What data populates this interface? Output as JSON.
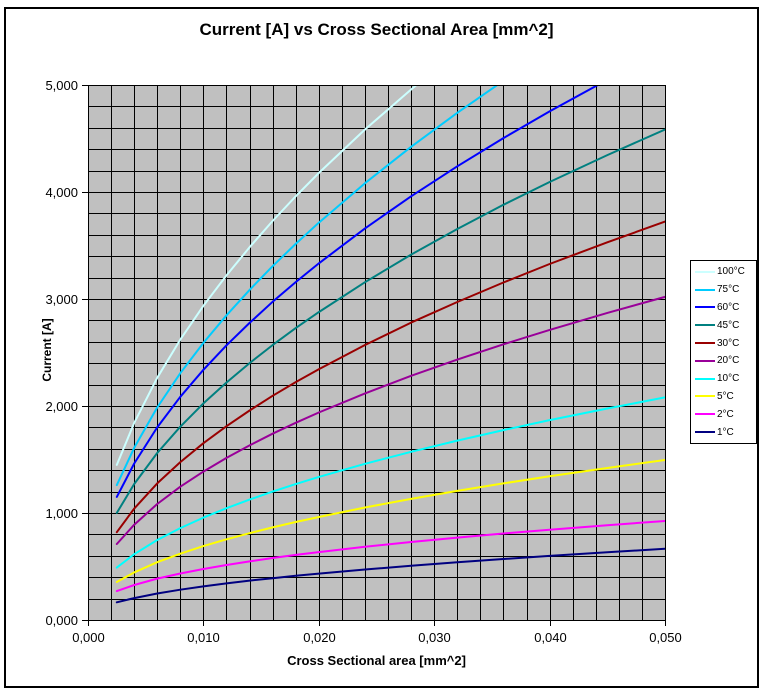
{
  "chart_data": {
    "type": "line",
    "title": "Current [A] vs Cross Sectional Area [mm^2]",
    "xlabel": "Cross Sectional area [mm^2]",
    "ylabel": "Current [A]",
    "xlim": [
      0,
      0.05
    ],
    "ylim": [
      0,
      5000
    ],
    "grid": true,
    "plot_bg_color": "#C0C0C0",
    "grid_color": "#000000",
    "axis_color": "#000000",
    "x_minor_step": 0.002,
    "y_minor_step": 200,
    "legend_position": "right",
    "x_ticks": {
      "values": [
        0,
        0.01,
        0.02,
        0.03,
        0.04,
        0.05
      ],
      "labels": [
        "0,000",
        "0,010",
        "0,020",
        "0,030",
        "0,040",
        "0,050"
      ]
    },
    "y_ticks": {
      "values": [
        0,
        1000,
        2000,
        3000,
        4000,
        5000
      ],
      "labels": [
        "0,000",
        "1,000",
        "2,000",
        "3,000",
        "4,000",
        "5,000"
      ]
    },
    "series": [
      {
        "name": "100°C",
        "color": "#CCFFFF",
        "points": [
          [
            0.0025,
            1450
          ],
          [
            0.004,
            1842
          ],
          [
            0.006,
            2264
          ],
          [
            0.008,
            2621
          ],
          [
            0.01,
            2936
          ],
          [
            0.012,
            3221
          ],
          [
            0.014,
            3484
          ],
          [
            0.016,
            3729
          ],
          [
            0.018,
            3960
          ],
          [
            0.02,
            4178
          ],
          [
            0.024,
            4584
          ],
          [
            0.028,
            4958
          ],
          [
            0.03,
            5137
          ]
        ]
      },
      {
        "name": "75°C",
        "color": "#00CCFF",
        "points": [
          [
            0.0025,
            1261
          ],
          [
            0.004,
            1609
          ],
          [
            0.006,
            1986
          ],
          [
            0.008,
            2307
          ],
          [
            0.01,
            2590
          ],
          [
            0.012,
            2848
          ],
          [
            0.014,
            3085
          ],
          [
            0.016,
            3307
          ],
          [
            0.018,
            3515
          ],
          [
            0.02,
            3713
          ],
          [
            0.024,
            4082
          ],
          [
            0.028,
            4422
          ],
          [
            0.032,
            4740
          ],
          [
            0.036,
            5039
          ]
        ]
      },
      {
        "name": "60°C",
        "color": "#0000FF",
        "points": [
          [
            0.0025,
            1150
          ],
          [
            0.004,
            1463
          ],
          [
            0.006,
            1800
          ],
          [
            0.008,
            2086
          ],
          [
            0.01,
            2338
          ],
          [
            0.012,
            2567
          ],
          [
            0.014,
            2777
          ],
          [
            0.016,
            2974
          ],
          [
            0.018,
            3158
          ],
          [
            0.02,
            3333
          ],
          [
            0.024,
            3660
          ],
          [
            0.028,
            3960
          ],
          [
            0.032,
            4240
          ],
          [
            0.036,
            4504
          ],
          [
            0.04,
            4753
          ],
          [
            0.045,
            5049
          ]
        ]
      },
      {
        "name": "45°C",
        "color": "#008080",
        "points": [
          [
            0.0025,
            1001
          ],
          [
            0.004,
            1271
          ],
          [
            0.006,
            1561
          ],
          [
            0.008,
            1807
          ],
          [
            0.01,
            2024
          ],
          [
            0.012,
            2220
          ],
          [
            0.014,
            2401
          ],
          [
            0.016,
            2569
          ],
          [
            0.018,
            2728
          ],
          [
            0.02,
            2878
          ],
          [
            0.024,
            3157
          ],
          [
            0.028,
            3415
          ],
          [
            0.032,
            3654
          ],
          [
            0.036,
            3880
          ],
          [
            0.04,
            4093
          ],
          [
            0.045,
            4345
          ],
          [
            0.05,
            4584
          ]
        ]
      },
      {
        "name": "30°C",
        "color": "#990000",
        "points": [
          [
            0.0025,
            821
          ],
          [
            0.004,
            1041
          ],
          [
            0.006,
            1277
          ],
          [
            0.008,
            1476
          ],
          [
            0.01,
            1652
          ],
          [
            0.012,
            1811
          ],
          [
            0.014,
            1958
          ],
          [
            0.016,
            2095
          ],
          [
            0.018,
            2223
          ],
          [
            0.02,
            2344
          ],
          [
            0.024,
            2570
          ],
          [
            0.028,
            2779
          ],
          [
            0.032,
            2972
          ],
          [
            0.036,
            3154
          ],
          [
            0.04,
            3327
          ],
          [
            0.045,
            3530
          ],
          [
            0.05,
            3723
          ]
        ]
      },
      {
        "name": "20°C",
        "color": "#990099",
        "points": [
          [
            0.0025,
            710
          ],
          [
            0.004,
            891
          ],
          [
            0.006,
            1084
          ],
          [
            0.008,
            1246
          ],
          [
            0.01,
            1387
          ],
          [
            0.012,
            1515
          ],
          [
            0.014,
            1632
          ],
          [
            0.016,
            1741
          ],
          [
            0.018,
            1843
          ],
          [
            0.02,
            1939
          ],
          [
            0.024,
            2118
          ],
          [
            0.028,
            2282
          ],
          [
            0.032,
            2434
          ],
          [
            0.036,
            2577
          ],
          [
            0.04,
            2711
          ],
          [
            0.045,
            2870
          ],
          [
            0.05,
            3020
          ]
        ]
      },
      {
        "name": "10°C",
        "color": "#00FFFF",
        "points": [
          [
            0.0025,
            490
          ],
          [
            0.004,
            615
          ],
          [
            0.006,
            748
          ],
          [
            0.008,
            859
          ],
          [
            0.01,
            957
          ],
          [
            0.012,
            1045
          ],
          [
            0.014,
            1125
          ],
          [
            0.016,
            1200
          ],
          [
            0.018,
            1270
          ],
          [
            0.02,
            1337
          ],
          [
            0.024,
            1460
          ],
          [
            0.028,
            1572
          ],
          [
            0.032,
            1677
          ],
          [
            0.036,
            1775
          ],
          [
            0.04,
            1868
          ],
          [
            0.045,
            1977
          ],
          [
            0.05,
            2080
          ]
        ]
      },
      {
        "name": "5°C",
        "color": "#FFFF00",
        "points": [
          [
            0.0025,
            355
          ],
          [
            0.004,
            445
          ],
          [
            0.006,
            540
          ],
          [
            0.008,
            620
          ],
          [
            0.01,
            691
          ],
          [
            0.012,
            754
          ],
          [
            0.014,
            811
          ],
          [
            0.016,
            865
          ],
          [
            0.018,
            916
          ],
          [
            0.02,
            963
          ],
          [
            0.024,
            1051
          ],
          [
            0.028,
            1132
          ],
          [
            0.032,
            1207
          ],
          [
            0.036,
            1277
          ],
          [
            0.04,
            1343
          ],
          [
            0.045,
            1421
          ],
          [
            0.05,
            1495
          ]
        ]
      },
      {
        "name": "2°C",
        "color": "#FF00FF",
        "points": [
          [
            0.0025,
            270
          ],
          [
            0.004,
            327
          ],
          [
            0.006,
            387
          ],
          [
            0.008,
            435
          ],
          [
            0.01,
            477
          ],
          [
            0.012,
            514
          ],
          [
            0.014,
            548
          ],
          [
            0.016,
            579
          ],
          [
            0.018,
            608
          ],
          [
            0.02,
            635
          ],
          [
            0.024,
            684
          ],
          [
            0.028,
            729
          ],
          [
            0.032,
            770
          ],
          [
            0.036,
            808
          ],
          [
            0.04,
            844
          ],
          [
            0.045,
            886
          ],
          [
            0.05,
            925
          ]
        ]
      },
      {
        "name": "1°C",
        "color": "#000080",
        "points": [
          [
            0.0025,
            165
          ],
          [
            0.004,
            205
          ],
          [
            0.006,
            248
          ],
          [
            0.008,
            283
          ],
          [
            0.01,
            314
          ],
          [
            0.012,
            342
          ],
          [
            0.014,
            368
          ],
          [
            0.016,
            391
          ],
          [
            0.018,
            413
          ],
          [
            0.02,
            434
          ],
          [
            0.024,
            472
          ],
          [
            0.028,
            507
          ],
          [
            0.032,
            540
          ],
          [
            0.036,
            570
          ],
          [
            0.04,
            599
          ],
          [
            0.045,
            633
          ],
          [
            0.05,
            665
          ]
        ]
      }
    ]
  }
}
